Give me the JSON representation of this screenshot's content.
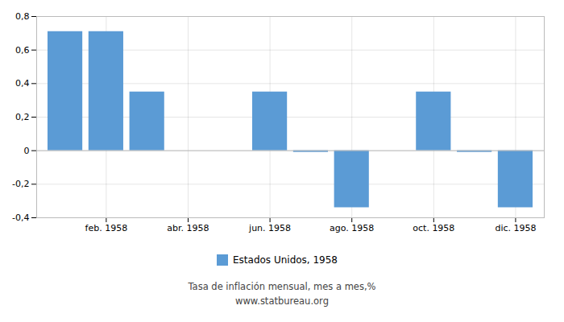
{
  "chart_data": {
    "type": "bar",
    "x": [
      1,
      2,
      3,
      6,
      7,
      8,
      10,
      11,
      12
    ],
    "series": [
      {
        "name": "Estados Unidos, 1958",
        "color": "#5b9bd5",
        "values": [
          0.71,
          0.71,
          0.35,
          0.35,
          -0.01,
          -0.34,
          0.35,
          -0.01,
          -0.34
        ]
      }
    ],
    "xlim": [
      0.3,
      12.7
    ],
    "xticks": [
      {
        "value": 2,
        "label": "feb. 1958"
      },
      {
        "value": 4,
        "label": "abr. 1958"
      },
      {
        "value": 6,
        "label": "jun. 1958"
      },
      {
        "value": 8,
        "label": "ago. 1958"
      },
      {
        "value": 10,
        "label": "oct. 1958"
      },
      {
        "value": 12,
        "label": "dic. 1958"
      }
    ],
    "ylim": [
      -0.4,
      0.8
    ],
    "yticks": [
      {
        "value": -0.4,
        "label": "-0,4"
      },
      {
        "value": -0.2,
        "label": "-0,2"
      },
      0,
      {
        "value": 0.2,
        "label": "0,2"
      },
      {
        "value": 0.4,
        "label": "0,4"
      },
      {
        "value": 0.6,
        "label": "0,6"
      },
      {
        "value": 0.8,
        "label": "0,8"
      }
    ],
    "grid": true,
    "legend": "bottom",
    "annotations": [
      "Tasa de inflación mensual, mes a mes,%",
      "www.statbureau.org"
    ]
  }
}
